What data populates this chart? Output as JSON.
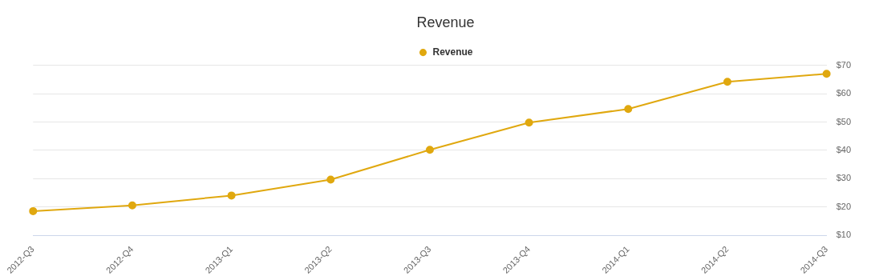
{
  "chart_data": {
    "type": "line",
    "title": "Revenue",
    "categories": [
      "2012-Q3",
      "2012-Q4",
      "2013-Q1",
      "2013-Q2",
      "2013-Q3",
      "2013-Q4",
      "2014-Q1",
      "2014-Q2",
      "2014-Q3"
    ],
    "series": [
      {
        "name": "Revenue",
        "color": "#e0a80f",
        "values": [
          18.6,
          20.6,
          24.1,
          29.7,
          40.2,
          49.8,
          54.6,
          64.2,
          67.0
        ]
      }
    ],
    "ylim": [
      10,
      70
    ],
    "yticks": [
      {
        "value": 10,
        "label": "$10"
      },
      {
        "value": 20,
        "label": "$20"
      },
      {
        "value": 30,
        "label": "$30"
      },
      {
        "value": 40,
        "label": "$40"
      },
      {
        "value": 50,
        "label": "$50"
      },
      {
        "value": 60,
        "label": "$60"
      },
      {
        "value": 70,
        "label": "$70"
      }
    ],
    "grid": "y",
    "legend": "top",
    "marker": "circle",
    "line_style": "solid"
  }
}
